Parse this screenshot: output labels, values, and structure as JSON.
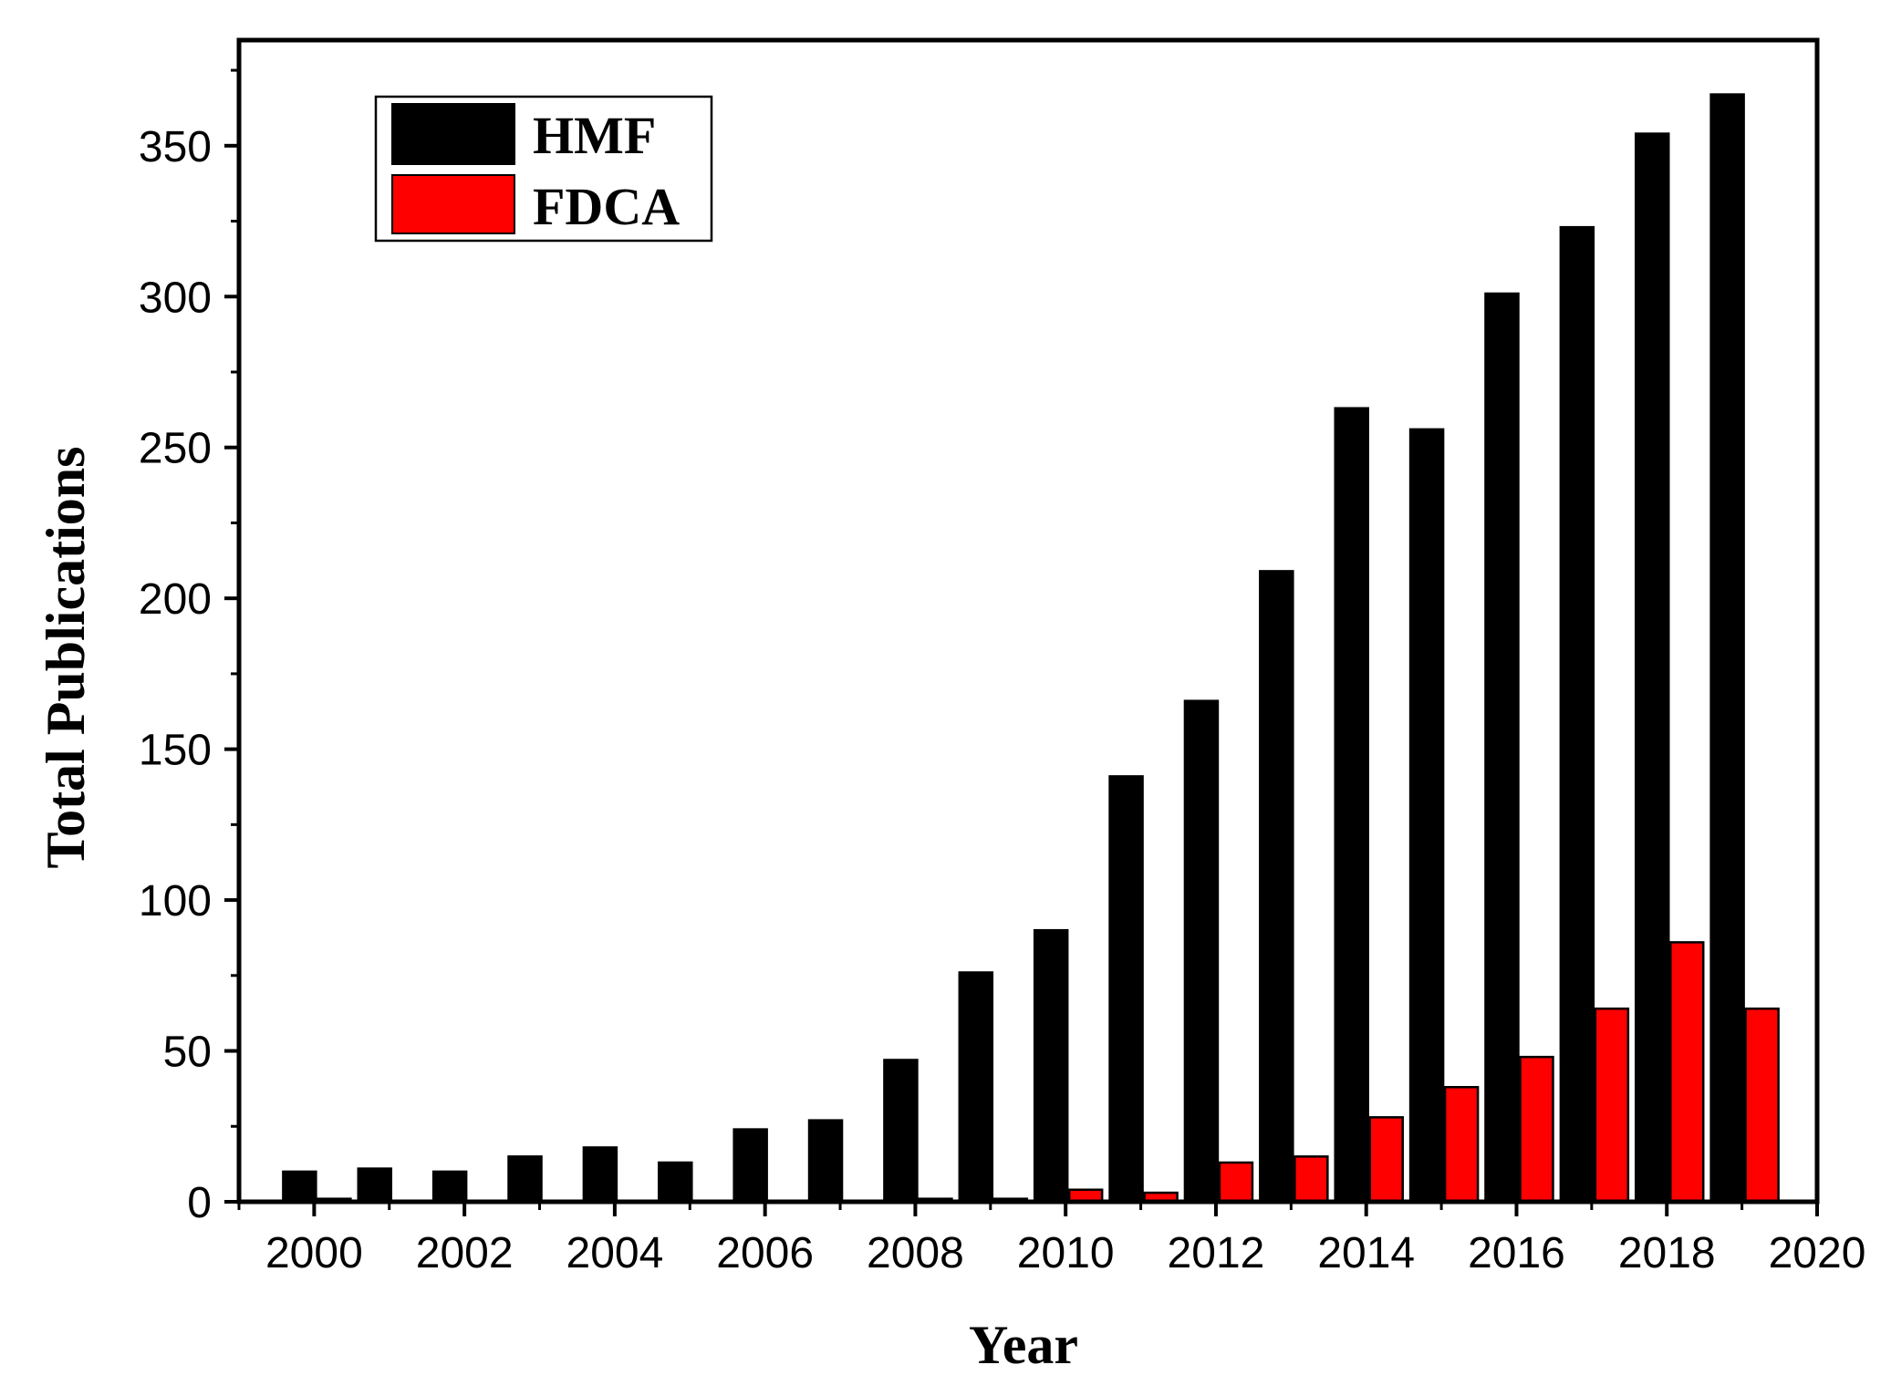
{
  "chart_data": {
    "type": "bar",
    "title": "",
    "xlabel": "Year",
    "ylabel": "Total Publications",
    "categories": [
      "2000",
      "2001",
      "2002",
      "2003",
      "2004",
      "2005",
      "2006",
      "2007",
      "2008",
      "2009",
      "2010",
      "2011",
      "2012",
      "2013",
      "2014",
      "2015",
      "2016",
      "2017",
      "2018",
      "2019"
    ],
    "series": [
      {
        "name": "HMF",
        "color": "#000000",
        "values": [
          10,
          11,
          10,
          15,
          18,
          13,
          24,
          27,
          47,
          76,
          90,
          141,
          166,
          209,
          263,
          256,
          301,
          323,
          354,
          367
        ]
      },
      {
        "name": "FDCA",
        "color": "#ff0000",
        "values": [
          1,
          0,
          0,
          0,
          0,
          0,
          0,
          0,
          1,
          1,
          4,
          3,
          13,
          15,
          28,
          38,
          48,
          64,
          86,
          64
        ]
      }
    ],
    "xlim": [
      1999,
      2020
    ],
    "ylim": [
      0,
      385
    ],
    "xticks": [
      "2000",
      "2002",
      "2004",
      "2006",
      "2008",
      "2010",
      "2012",
      "2014",
      "2016",
      "2018",
      "2020"
    ],
    "yticks": [
      "0",
      "50",
      "100",
      "150",
      "200",
      "250",
      "300",
      "350"
    ],
    "legend_position": "top-left",
    "grid": false
  }
}
